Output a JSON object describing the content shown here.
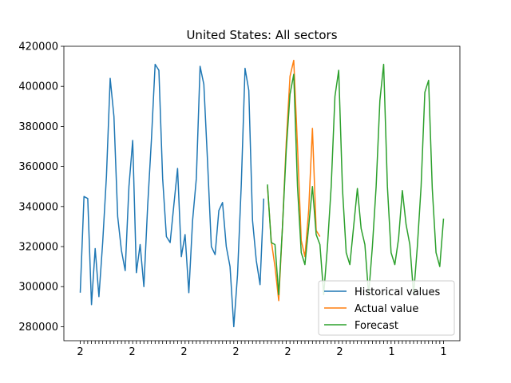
{
  "chart_data": {
    "type": "line",
    "title": "United States: All sectors",
    "xlabel": "",
    "ylabel": "",
    "ylim": [
      273000,
      420000
    ],
    "yticks": [
      280000,
      300000,
      320000,
      340000,
      360000,
      380000,
      400000,
      420000
    ],
    "ytick_labels": [
      "280000",
      "300000",
      "320000",
      "340000",
      "360000",
      "380000",
      "400000",
      "420000"
    ],
    "x_tick_label_visible": [
      "2",
      "2",
      "2",
      "2",
      "2",
      "2",
      "1",
      "1"
    ],
    "grid": false,
    "legend_position": "lower right",
    "series": [
      {
        "name": "Historical values",
        "color": "#1f77b4",
        "start_index": 0,
        "values": [
          297000,
          345000,
          344000,
          291000,
          319000,
          295000,
          322000,
          355000,
          404000,
          385000,
          335000,
          318000,
          308000,
          350000,
          373000,
          307000,
          321000,
          300000,
          340000,
          373000,
          411000,
          408000,
          354000,
          325000,
          322000,
          341000,
          359000,
          315000,
          326000,
          297000,
          333000,
          354000,
          410000,
          401000,
          362000,
          320000,
          316000,
          338000,
          342000,
          320000,
          310000,
          280000,
          306000,
          351000,
          409000,
          398000,
          333000,
          313000,
          301000,
          344000
        ]
      },
      {
        "name": "Actual value",
        "color": "#ff7f0e",
        "start_index": 50,
        "values": [
          350000,
          323000,
          310000,
          293000,
          330000,
          372000,
          405000,
          413000,
          370000,
          323000,
          315000,
          338000,
          379000,
          328000,
          325000
        ]
      },
      {
        "name": "Forecast",
        "color": "#2ca02c",
        "start_index": 50,
        "values": [
          351000,
          322000,
          321000,
          296000,
          330000,
          368000,
          396000,
          406000,
          350000,
          317000,
          311000,
          330000,
          350000,
          326000,
          321000,
          296000,
          320000,
          350000,
          395000,
          408000,
          349000,
          317000,
          311000,
          330000,
          349000,
          329000,
          321000,
          296000,
          320000,
          350000,
          393000,
          411000,
          350000,
          317000,
          311000,
          324000,
          348000,
          331000,
          321000,
          296000,
          320000,
          350000,
          397000,
          403000,
          349000,
          317000,
          310000,
          334000
        ]
      }
    ]
  }
}
